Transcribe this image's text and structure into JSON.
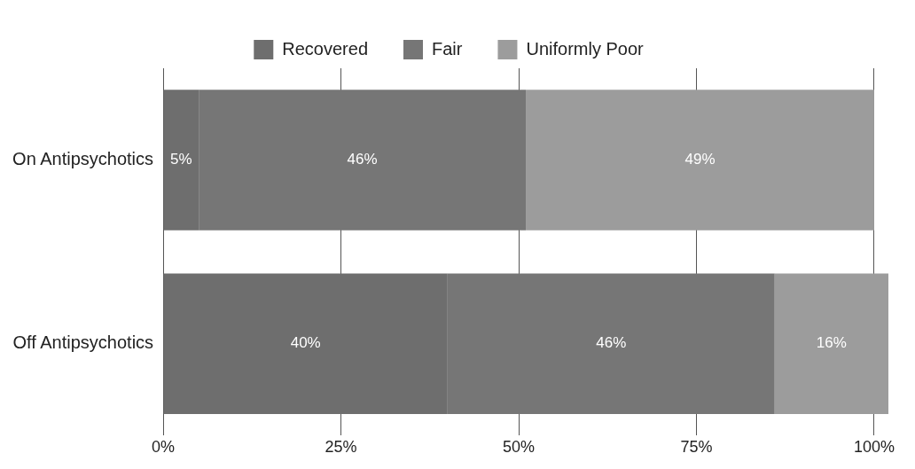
{
  "chart_data": {
    "type": "bar",
    "orientation": "horizontal",
    "stacked": true,
    "categories": [
      "On Antipsychotics",
      "Off Antipsychotics"
    ],
    "series": [
      {
        "name": "Recovered",
        "color": "#6e6e6e",
        "values": [
          5,
          40
        ],
        "value_labels": [
          "5%",
          "40%"
        ]
      },
      {
        "name": "Fair",
        "color": "#767676",
        "values": [
          46,
          46
        ],
        "value_labels": [
          "46%",
          "46%"
        ]
      },
      {
        "name": "Uniformly Poor",
        "color": "#9c9c9c",
        "values": [
          49,
          16
        ],
        "value_labels": [
          "49%",
          "16%"
        ]
      }
    ],
    "xlim": [
      0,
      102
    ],
    "xticks": [
      {
        "value": 0,
        "label": "0%"
      },
      {
        "value": 25,
        "label": "25%"
      },
      {
        "value": 50,
        "label": "50%"
      },
      {
        "value": 75,
        "label": "75%"
      },
      {
        "value": 100,
        "label": "100%"
      }
    ],
    "grid": "x",
    "legend": "top"
  }
}
